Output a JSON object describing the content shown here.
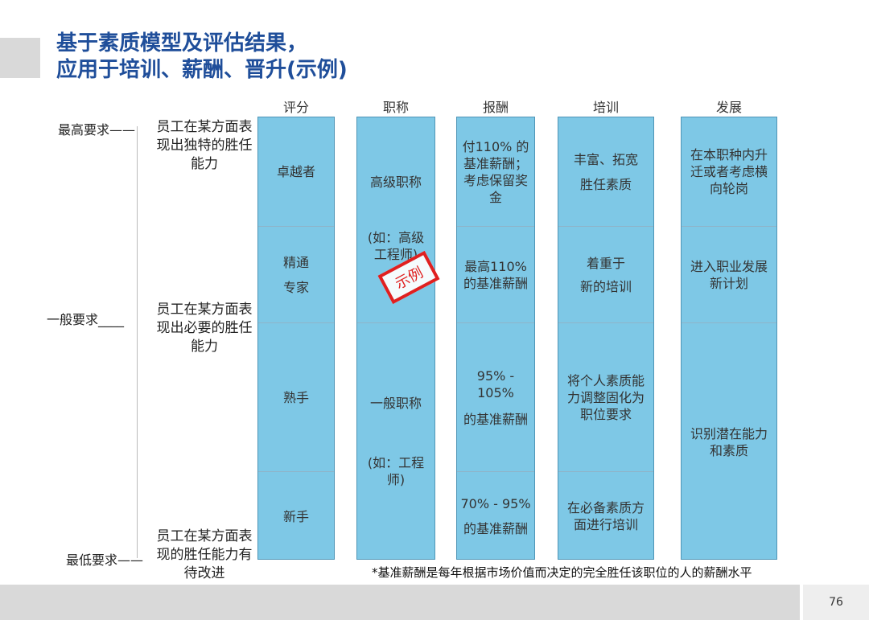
{
  "title": {
    "line1": "基于素质模型及评估结果，",
    "line2": "应用于培训、薪酬、晋升(示例)"
  },
  "headers": {
    "score": "评分",
    "title": "职称",
    "pay": "报酬",
    "training": "培训",
    "development": "发展"
  },
  "levels": {
    "highest": "最高要求——",
    "general": "一般要求____",
    "lowest": "最低要求——"
  },
  "descriptions": {
    "high": "员工在某方面表现出独特的胜任能力",
    "mid": "员工在某方面表现出必要的胜任能力",
    "low": "员工在某方面表现的胜任能力有待改进"
  },
  "score": {
    "excellent": "卓越者",
    "master_1": "精通",
    "master_2": "专家",
    "skilled": "熟手",
    "novice": "新手"
  },
  "job_title": {
    "senior": "高级职称",
    "senior_example": "(如：高级工程师)",
    "general": "一般职称",
    "general_example": "(如：工程师)"
  },
  "pay": {
    "excellent": "付110% 的基准薪酬；考虑保留奖金",
    "master": "最高110%的基准薪酬",
    "skilled_range": "95% - 105%",
    "skilled_label": "的基准薪酬",
    "novice_range": "70% - 95%",
    "novice_label": "的基准薪酬"
  },
  "training": {
    "excellent_1": "丰富、拓宽",
    "excellent_2": "胜任素质",
    "master_1": "着重于",
    "master_2": "新的培训",
    "skilled": "将个人素质能力调整固化为职位要求",
    "novice": "在必备素质方面进行培训"
  },
  "development": {
    "excellent": "在本职种内升迁或者考虑横向轮岗",
    "master": "进入职业发展新计划",
    "lower": "识别潜在能力和素质"
  },
  "stamp": "示例",
  "footnote": "*基准薪酬是每年根据市场价值而决定的完全胜任该职位的人的薪酬水平",
  "page_number": "76",
  "colors": {
    "title": "#1f4e9a",
    "column_fill": "#7ec8e6",
    "stamp": "#e02020"
  }
}
